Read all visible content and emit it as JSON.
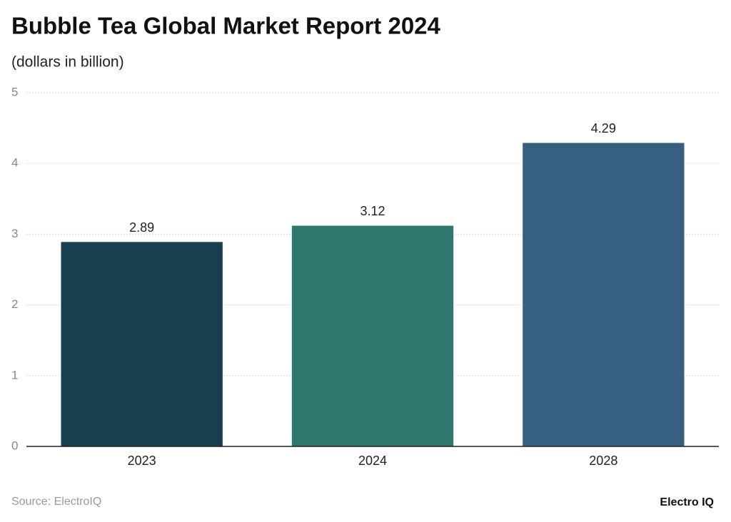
{
  "chart_data": {
    "type": "bar",
    "title": "Bubble Tea Global Market Report 2024",
    "subtitle": "(dollars in billion)",
    "categories": [
      "2023",
      "2024",
      "2028"
    ],
    "values": [
      2.89,
      3.12,
      4.29
    ],
    "colors": [
      "#183f4f",
      "#2e776f",
      "#365f80"
    ],
    "ylim": [
      0,
      5
    ],
    "yticks": [
      0,
      1,
      2,
      3,
      4,
      5
    ],
    "grid": true,
    "source": "Source: ElectroIQ",
    "brand": "Electro IQ"
  }
}
